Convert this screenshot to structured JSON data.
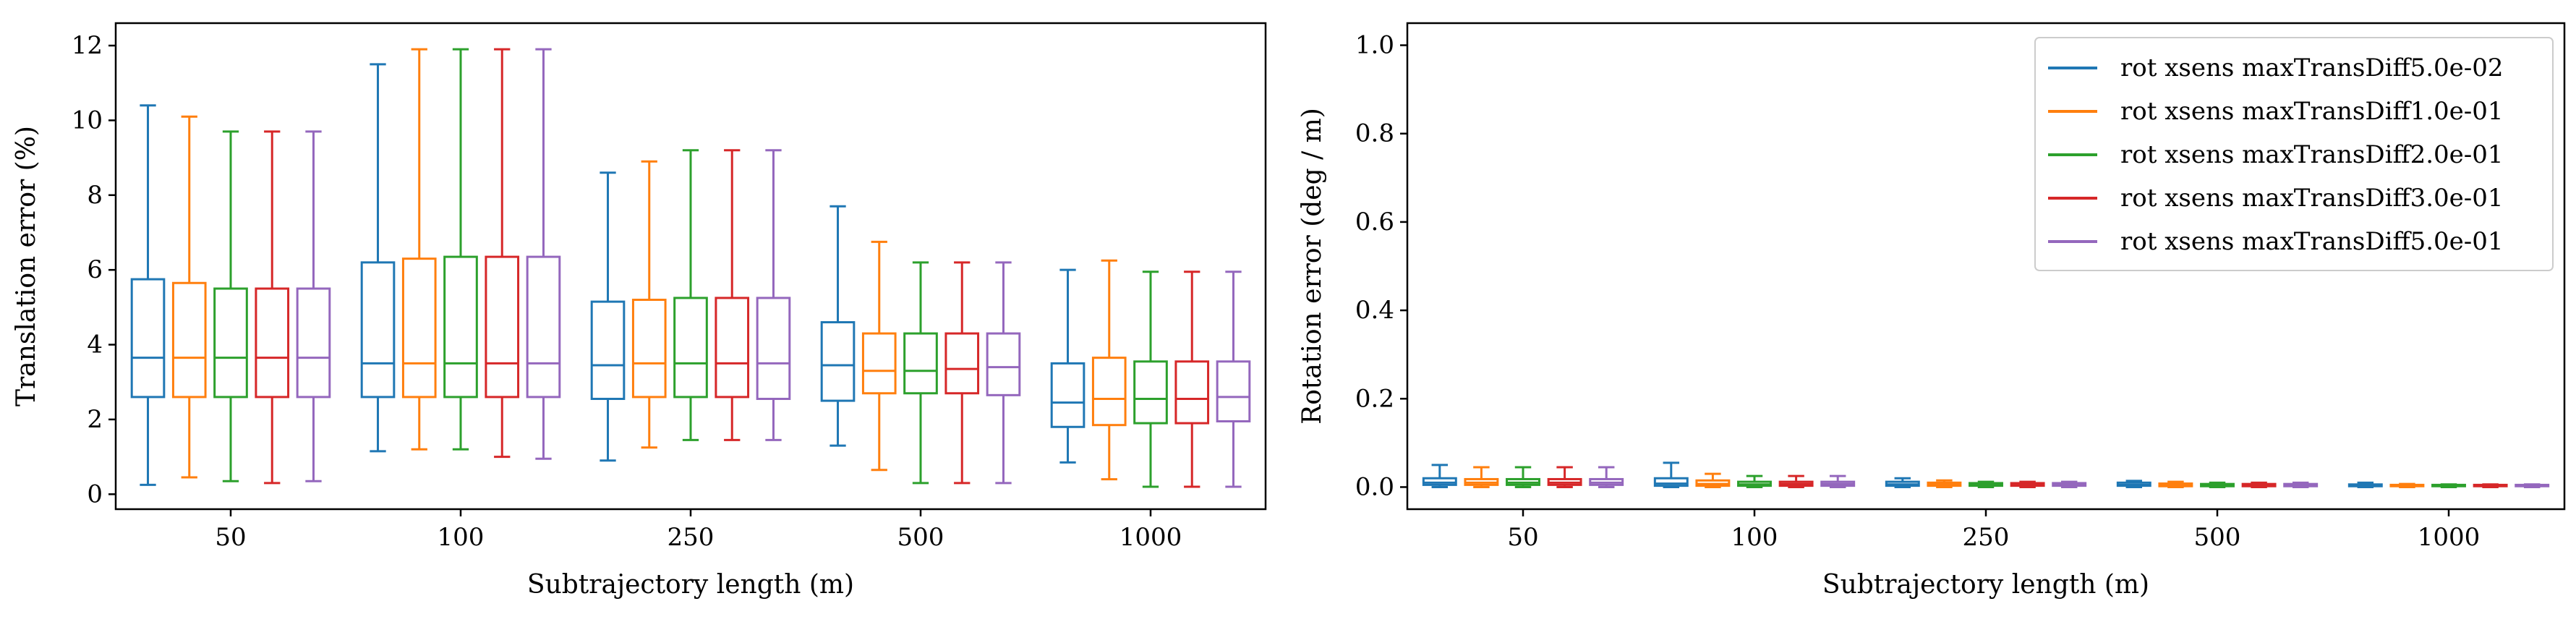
{
  "colors": [
    "#1f77b4",
    "#ff7f0e",
    "#2ca02c",
    "#d62728",
    "#9467bd"
  ],
  "chart_data": [
    {
      "type": "box",
      "xlabel": "Subtrajectory length (m)",
      "ylabel": "Translation error (%)",
      "ylim": [
        -0.4,
        12.6
      ],
      "yticks": [
        0,
        2,
        4,
        6,
        8,
        10,
        12
      ],
      "grid": false,
      "categories": [
        "50",
        "100",
        "250",
        "500",
        "1000"
      ],
      "series": [
        {
          "name": "rot xsens maxTransDiff5.0e-02",
          "boxes": [
            {
              "min": 0.25,
              "q1": 2.6,
              "median": 3.65,
              "q3": 5.75,
              "max": 10.4
            },
            {
              "min": 1.15,
              "q1": 2.6,
              "median": 3.5,
              "q3": 6.2,
              "max": 11.5
            },
            {
              "min": 0.9,
              "q1": 2.55,
              "median": 3.45,
              "q3": 5.15,
              "max": 8.6
            },
            {
              "min": 1.3,
              "q1": 2.5,
              "median": 3.45,
              "q3": 4.6,
              "max": 7.7
            },
            {
              "min": 0.85,
              "q1": 1.8,
              "median": 2.45,
              "q3": 3.5,
              "max": 6.0
            }
          ]
        },
        {
          "name": "rot xsens maxTransDiff1.0e-01",
          "boxes": [
            {
              "min": 0.45,
              "q1": 2.6,
              "median": 3.65,
              "q3": 5.65,
              "max": 10.1
            },
            {
              "min": 1.2,
              "q1": 2.6,
              "median": 3.5,
              "q3": 6.3,
              "max": 11.9
            },
            {
              "min": 1.25,
              "q1": 2.6,
              "median": 3.5,
              "q3": 5.2,
              "max": 8.9
            },
            {
              "min": 0.65,
              "q1": 2.7,
              "median": 3.3,
              "q3": 4.3,
              "max": 6.75
            },
            {
              "min": 0.4,
              "q1": 1.85,
              "median": 2.55,
              "q3": 3.65,
              "max": 6.25
            }
          ]
        },
        {
          "name": "rot xsens maxTransDiff2.0e-01",
          "boxes": [
            {
              "min": 0.35,
              "q1": 2.6,
              "median": 3.65,
              "q3": 5.5,
              "max": 9.7
            },
            {
              "min": 1.2,
              "q1": 2.6,
              "median": 3.5,
              "q3": 6.35,
              "max": 11.9
            },
            {
              "min": 1.45,
              "q1": 2.6,
              "median": 3.5,
              "q3": 5.25,
              "max": 9.2
            },
            {
              "min": 0.3,
              "q1": 2.7,
              "median": 3.3,
              "q3": 4.3,
              "max": 6.2
            },
            {
              "min": 0.2,
              "q1": 1.9,
              "median": 2.55,
              "q3": 3.55,
              "max": 5.95
            }
          ]
        },
        {
          "name": "rot xsens maxTransDiff3.0e-01",
          "boxes": [
            {
              "min": 0.3,
              "q1": 2.6,
              "median": 3.65,
              "q3": 5.5,
              "max": 9.7
            },
            {
              "min": 1.0,
              "q1": 2.6,
              "median": 3.5,
              "q3": 6.35,
              "max": 11.9
            },
            {
              "min": 1.45,
              "q1": 2.6,
              "median": 3.5,
              "q3": 5.25,
              "max": 9.2
            },
            {
              "min": 0.3,
              "q1": 2.7,
              "median": 3.35,
              "q3": 4.3,
              "max": 6.2
            },
            {
              "min": 0.2,
              "q1": 1.9,
              "median": 2.55,
              "q3": 3.55,
              "max": 5.95
            }
          ]
        },
        {
          "name": "rot xsens maxTransDiff5.0e-01",
          "boxes": [
            {
              "min": 0.35,
              "q1": 2.6,
              "median": 3.65,
              "q3": 5.5,
              "max": 9.7
            },
            {
              "min": 0.95,
              "q1": 2.6,
              "median": 3.5,
              "q3": 6.35,
              "max": 11.9
            },
            {
              "min": 1.45,
              "q1": 2.55,
              "median": 3.5,
              "q3": 5.25,
              "max": 9.2
            },
            {
              "min": 0.3,
              "q1": 2.65,
              "median": 3.4,
              "q3": 4.3,
              "max": 6.2
            },
            {
              "min": 0.2,
              "q1": 1.95,
              "median": 2.6,
              "q3": 3.55,
              "max": 5.95
            }
          ]
        }
      ]
    },
    {
      "type": "box",
      "xlabel": "Subtrajectory length (m)",
      "ylabel": "Rotation error (deg / m)",
      "ylim": [
        -0.05,
        1.05
      ],
      "yticks": [
        0.0,
        0.2,
        0.4,
        0.6,
        0.8,
        1.0
      ],
      "ytick_labels": [
        "0.0",
        "0.2",
        "0.4",
        "0.6",
        "0.8",
        "1.0"
      ],
      "grid": false,
      "legend_position": "top-right",
      "categories": [
        "50",
        "100",
        "250",
        "500",
        "1000"
      ],
      "series": [
        {
          "name": "rot xsens maxTransDiff5.0e-02",
          "boxes": [
            {
              "min": 0.0,
              "q1": 0.005,
              "median": 0.01,
              "q3": 0.02,
              "max": 0.05
            },
            {
              "min": 0.0,
              "q1": 0.003,
              "median": 0.008,
              "q3": 0.02,
              "max": 0.055
            },
            {
              "min": 0.0,
              "q1": 0.003,
              "median": 0.006,
              "q3": 0.012,
              "max": 0.02
            },
            {
              "min": 0.0,
              "q1": 0.003,
              "median": 0.005,
              "q3": 0.01,
              "max": 0.014
            },
            {
              "min": 0.0,
              "q1": 0.002,
              "median": 0.004,
              "q3": 0.006,
              "max": 0.01
            }
          ]
        },
        {
          "name": "rot xsens maxTransDiff1.0e-01",
          "boxes": [
            {
              "min": 0.0,
              "q1": 0.005,
              "median": 0.01,
              "q3": 0.018,
              "max": 0.045
            },
            {
              "min": 0.0,
              "q1": 0.003,
              "median": 0.007,
              "q3": 0.015,
              "max": 0.03
            },
            {
              "min": 0.0,
              "q1": 0.003,
              "median": 0.006,
              "q3": 0.01,
              "max": 0.015
            },
            {
              "min": 0.0,
              "q1": 0.002,
              "median": 0.005,
              "q3": 0.008,
              "max": 0.012
            },
            {
              "min": 0.0,
              "q1": 0.002,
              "median": 0.003,
              "q3": 0.005,
              "max": 0.007
            }
          ]
        },
        {
          "name": "rot xsens maxTransDiff2.0e-01",
          "boxes": [
            {
              "min": 0.0,
              "q1": 0.005,
              "median": 0.01,
              "q3": 0.018,
              "max": 0.045
            },
            {
              "min": 0.0,
              "q1": 0.003,
              "median": 0.006,
              "q3": 0.012,
              "max": 0.025
            },
            {
              "min": 0.0,
              "q1": 0.003,
              "median": 0.005,
              "q3": 0.009,
              "max": 0.012
            },
            {
              "min": 0.0,
              "q1": 0.002,
              "median": 0.004,
              "q3": 0.007,
              "max": 0.01
            },
            {
              "min": 0.0,
              "q1": 0.002,
              "median": 0.003,
              "q3": 0.005,
              "max": 0.006
            }
          ]
        },
        {
          "name": "rot xsens maxTransDiff3.0e-01",
          "boxes": [
            {
              "min": 0.0,
              "q1": 0.005,
              "median": 0.01,
              "q3": 0.018,
              "max": 0.045
            },
            {
              "min": 0.0,
              "q1": 0.003,
              "median": 0.007,
              "q3": 0.012,
              "max": 0.025
            },
            {
              "min": 0.0,
              "q1": 0.003,
              "median": 0.005,
              "q3": 0.009,
              "max": 0.012
            },
            {
              "min": 0.0,
              "q1": 0.002,
              "median": 0.004,
              "q3": 0.007,
              "max": 0.01
            },
            {
              "min": 0.0,
              "q1": 0.002,
              "median": 0.003,
              "q3": 0.005,
              "max": 0.006
            }
          ]
        },
        {
          "name": "rot xsens maxTransDiff5.0e-01",
          "boxes": [
            {
              "min": 0.0,
              "q1": 0.005,
              "median": 0.01,
              "q3": 0.018,
              "max": 0.045
            },
            {
              "min": 0.0,
              "q1": 0.003,
              "median": 0.007,
              "q3": 0.012,
              "max": 0.025
            },
            {
              "min": 0.0,
              "q1": 0.003,
              "median": 0.005,
              "q3": 0.009,
              "max": 0.012
            },
            {
              "min": 0.0,
              "q1": 0.002,
              "median": 0.004,
              "q3": 0.007,
              "max": 0.01
            },
            {
              "min": 0.0,
              "q1": 0.002,
              "median": 0.003,
              "q3": 0.005,
              "max": 0.006
            }
          ]
        }
      ]
    }
  ]
}
